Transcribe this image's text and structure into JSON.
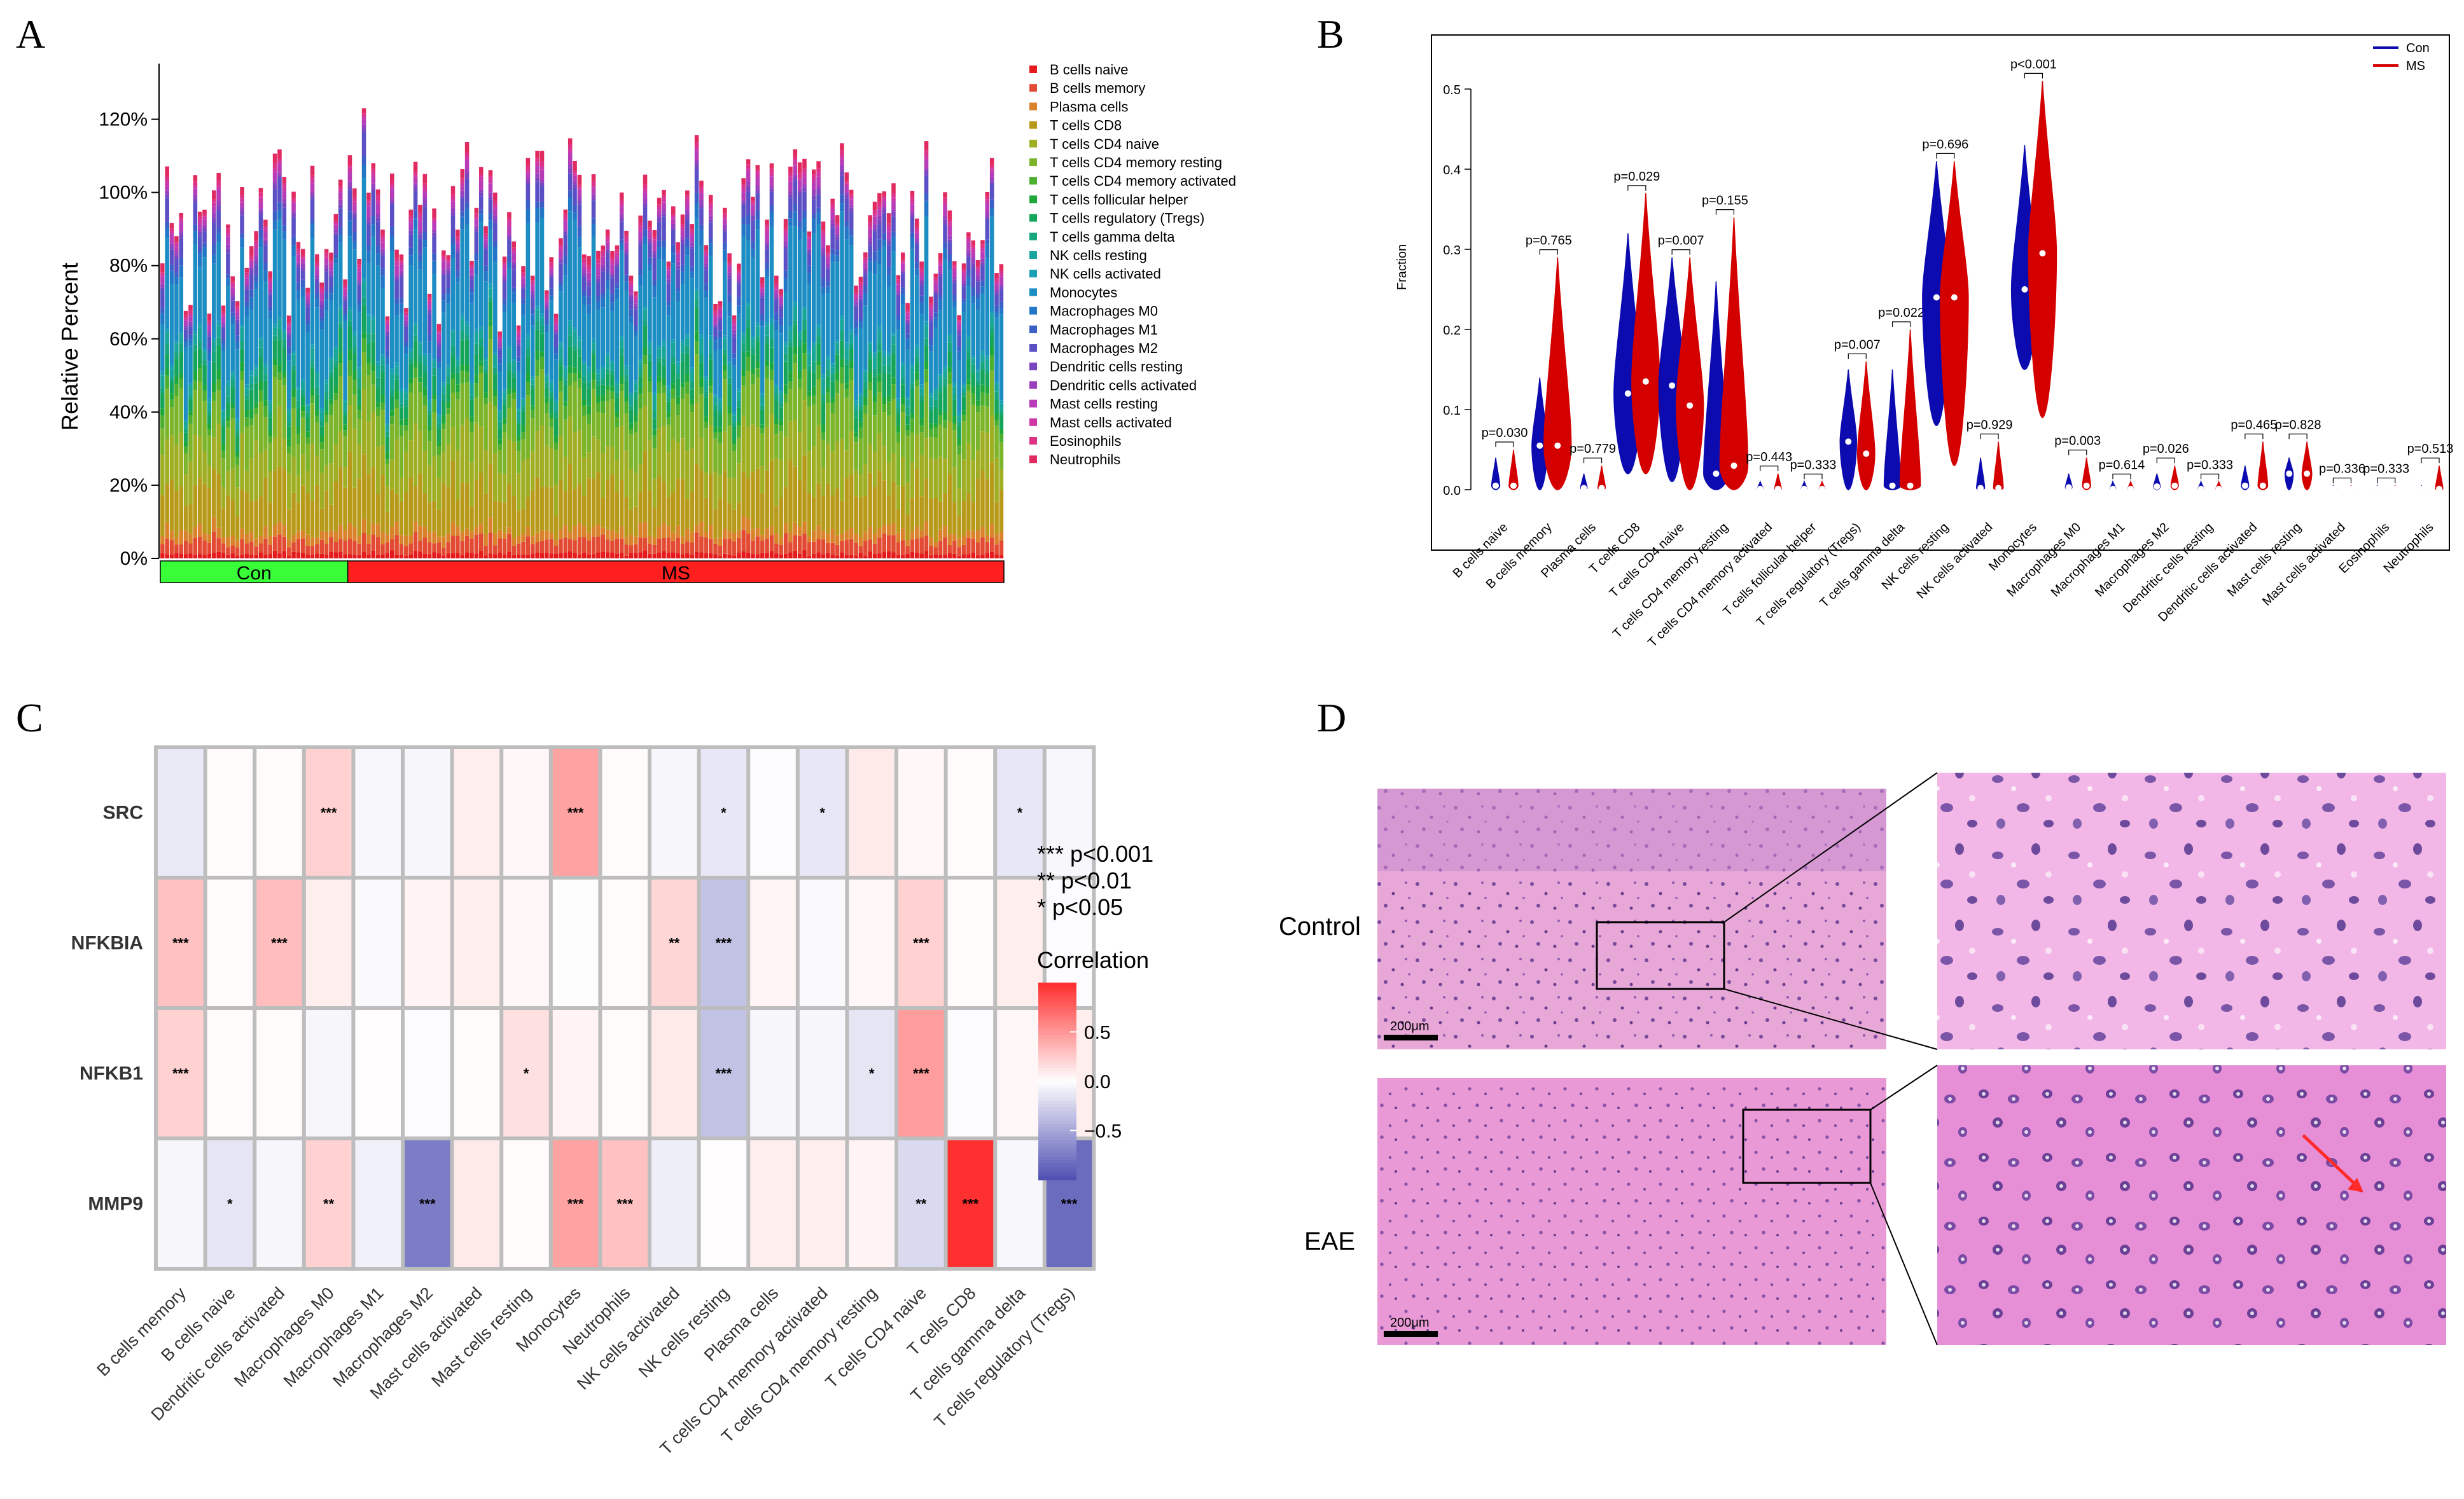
{
  "figure": {
    "panels": [
      "A",
      "B",
      "C",
      "D"
    ]
  },
  "chart_data": [
    {
      "panel": "A",
      "type": "bar",
      "stacked": true,
      "ylabel": "Relative Percent",
      "ylim": [
        0,
        130
      ],
      "y_ticks": [
        "0%",
        "20%",
        "40%",
        "60%",
        "80%",
        "100%",
        "120%"
      ],
      "y_tick_values": [
        0,
        20,
        40,
        60,
        80,
        100,
        120
      ],
      "groups": [
        {
          "name": "Con",
          "n_samples": 40,
          "color": "#39ff39"
        },
        {
          "name": "MS",
          "n_samples": 140,
          "color": "#ff1f1f"
        }
      ],
      "legend": [
        {
          "name": "B cells naive",
          "color": "#e41a1c"
        },
        {
          "name": "B cells memory",
          "color": "#e34a33"
        },
        {
          "name": "Plasma cells",
          "color": "#d9822b"
        },
        {
          "name": "T cells CD8",
          "color": "#b89a1a"
        },
        {
          "name": "T cells CD4 naive",
          "color": "#9fae22"
        },
        {
          "name": "T cells CD4 memory resting",
          "color": "#7cb42a"
        },
        {
          "name": "T cells CD4 memory activated",
          "color": "#4caf2e"
        },
        {
          "name": "T cells follicular helper",
          "color": "#1fa83a"
        },
        {
          "name": "T cells regulatory (Tregs)",
          "color": "#14a55a"
        },
        {
          "name": "T cells gamma delta",
          "color": "#17a57c"
        },
        {
          "name": "NK cells resting",
          "color": "#18a59a"
        },
        {
          "name": "NK cells activated",
          "color": "#1aa0b5"
        },
        {
          "name": "Monocytes",
          "color": "#1c8ec4"
        },
        {
          "name": "Macrophages M0",
          "color": "#2277c6"
        },
        {
          "name": "Macrophages M1",
          "color": "#3a5fc6"
        },
        {
          "name": "Macrophages M2",
          "color": "#5a4fc4"
        },
        {
          "name": "Dendritic cells resting",
          "color": "#7b45c0"
        },
        {
          "name": "Dendritic cells activated",
          "color": "#9a3fbd"
        },
        {
          "name": "Mast cells resting",
          "color": "#b83bb8"
        },
        {
          "name": "Mast cells activated",
          "color": "#cf37a5"
        },
        {
          "name": "Eosinophils",
          "color": "#dd3286"
        },
        {
          "name": "Neutrophils",
          "color": "#e12a5f"
        }
      ],
      "mean_composition_percent": [
        1.5,
        4,
        3,
        13,
        12,
        12,
        3,
        2,
        5,
        2,
        3,
        1,
        22,
        3,
        2,
        5,
        1,
        1,
        2,
        1,
        1,
        2
      ]
    },
    {
      "panel": "B",
      "type": "violin",
      "ylabel": "Fraction",
      "ylim": [
        0,
        0.55
      ],
      "y_ticks": [
        "0.0",
        "0.1",
        "0.2",
        "0.3",
        "0.4",
        "0.5"
      ],
      "y_tick_values": [
        0,
        0.1,
        0.2,
        0.3,
        0.4,
        0.5
      ],
      "legend": [
        {
          "name": "Con",
          "color": "#0b0bb0"
        },
        {
          "name": "MS",
          "color": "#d40000"
        }
      ],
      "categories": [
        "B cells naive",
        "B cells memory",
        "Plasma cells",
        "T cells CD8",
        "T cells CD4 naive",
        "T cells CD4 memory resting",
        "T cells CD4 memory activated",
        "T cells follicular helper",
        "T cells regulatory (Tregs)",
        "T cells gamma delta",
        "NK cells resting",
        "NK cells activated",
        "Monocytes",
        "Macrophages M0",
        "Macrophages M1",
        "Macrophages M2",
        "Dendritic cells resting",
        "Dendritic cells activated",
        "Mast cells resting",
        "Mast cells activated",
        "Eosinophils",
        "Neutrophils"
      ],
      "p_values": [
        "p=0.030",
        "p=0.765",
        "p=0.779",
        "p=0.029",
        "p=0.007",
        "p=0.155",
        "p=0.443",
        "p=0.333",
        "p=0.007",
        "p=0.022",
        "p=0.696",
        "p=0.929",
        "p<0.001",
        "p=0.003",
        "p=0.614",
        "p=0.026",
        "p=0.333",
        "p=0.465",
        "p=0.828",
        "p=0.336",
        "p=0.333",
        "p=0.513"
      ],
      "con": [
        {
          "min": 0,
          "max": 0.04,
          "median": 0.005
        },
        {
          "min": 0,
          "max": 0.14,
          "median": 0.055
        },
        {
          "min": 0,
          "max": 0.02,
          "median": 0.002
        },
        {
          "min": 0.02,
          "max": 0.32,
          "median": 0.12
        },
        {
          "min": 0.01,
          "max": 0.29,
          "median": 0.13
        },
        {
          "min": 0,
          "max": 0.26,
          "median": 0.02
        },
        {
          "min": 0,
          "max": 0.01,
          "median": 0.001
        },
        {
          "min": 0,
          "max": 0.01,
          "median": 0.001
        },
        {
          "min": 0,
          "max": 0.15,
          "median": 0.06
        },
        {
          "min": 0,
          "max": 0.15,
          "median": 0.005
        },
        {
          "min": 0.08,
          "max": 0.41,
          "median": 0.24
        },
        {
          "min": 0,
          "max": 0.04,
          "median": 0.002
        },
        {
          "min": 0.15,
          "max": 0.43,
          "median": 0.25
        },
        {
          "min": 0,
          "max": 0.02,
          "median": 0.003
        },
        {
          "min": 0,
          "max": 0.01,
          "median": 0.001
        },
        {
          "min": 0,
          "max": 0.02,
          "median": 0.004
        },
        {
          "min": 0,
          "max": 0.01,
          "median": 0.001
        },
        {
          "min": 0,
          "max": 0.03,
          "median": 0.005
        },
        {
          "min": 0,
          "max": 0.04,
          "median": 0.02
        },
        {
          "min": 0,
          "max": 0.005,
          "median": 0.001
        },
        {
          "min": 0,
          "max": 0.005,
          "median": 0.001
        },
        {
          "min": 0,
          "max": 0.005,
          "median": 0.001
        }
      ],
      "ms": [
        {
          "min": 0,
          "max": 0.05,
          "median": 0.005
        },
        {
          "min": 0,
          "max": 0.29,
          "median": 0.055
        },
        {
          "min": 0,
          "max": 0.03,
          "median": 0.002
        },
        {
          "min": 0.02,
          "max": 0.37,
          "median": 0.135
        },
        {
          "min": 0,
          "max": 0.29,
          "median": 0.105
        },
        {
          "min": 0,
          "max": 0.34,
          "median": 0.03
        },
        {
          "min": 0,
          "max": 0.02,
          "median": 0.001
        },
        {
          "min": 0,
          "max": 0.01,
          "median": 0.001
        },
        {
          "min": 0,
          "max": 0.16,
          "median": 0.045
        },
        {
          "min": 0,
          "max": 0.2,
          "median": 0.005
        },
        {
          "min": 0.03,
          "max": 0.41,
          "median": 0.24
        },
        {
          "min": 0,
          "max": 0.06,
          "median": 0.002
        },
        {
          "min": 0.09,
          "max": 0.51,
          "median": 0.295
        },
        {
          "min": 0,
          "max": 0.04,
          "median": 0.005
        },
        {
          "min": 0,
          "max": 0.01,
          "median": 0.001
        },
        {
          "min": 0,
          "max": 0.03,
          "median": 0.005
        },
        {
          "min": 0,
          "max": 0.01,
          "median": 0.001
        },
        {
          "min": 0,
          "max": 0.06,
          "median": 0.005
        },
        {
          "min": 0,
          "max": 0.06,
          "median": 0.02
        },
        {
          "min": 0,
          "max": 0.005,
          "median": 0.001
        },
        {
          "min": 0,
          "max": 0.005,
          "median": 0.001
        },
        {
          "min": 0,
          "max": 0.03,
          "median": 0.001
        }
      ]
    },
    {
      "panel": "C",
      "type": "heatmap",
      "rows": [
        "SRC",
        "NFKBIA",
        "NFKB1",
        "MMP9"
      ],
      "columns": [
        "B cells memory",
        "B cells naive",
        "Dendritic cells activated",
        "Macrophages M0",
        "Macrophages M1",
        "Macrophages M2",
        "Mast cells activated",
        "Mast cells resting",
        "Monocytes",
        "Neutrophils",
        "NK cells activated",
        "NK cells resting",
        "Plasma cells",
        "T cells CD4 memory activated",
        "T cells CD4 memory resting",
        "T cells CD4 naive",
        "T cells CD8",
        "T cells gamma delta",
        "T cells regulatory (Tregs)"
      ],
      "values": [
        [
          -0.12,
          0.02,
          0.02,
          0.22,
          -0.04,
          -0.05,
          0.08,
          0.04,
          0.45,
          0.02,
          -0.05,
          -0.14,
          -0.02,
          -0.14,
          0.1,
          0.04,
          0.02,
          -0.14,
          -0.04
        ],
        [
          0.3,
          0.02,
          0.32,
          0.08,
          -0.03,
          0.06,
          0.08,
          0.04,
          -0.01,
          0.02,
          0.2,
          -0.35,
          0.05,
          -0.03,
          0.04,
          0.22,
          0.02,
          0.08,
          -0.02
        ],
        [
          0.22,
          0.02,
          0.02,
          -0.05,
          0.01,
          -0.02,
          0.02,
          0.15,
          0.06,
          0.02,
          0.1,
          -0.35,
          -0.05,
          -0.05,
          -0.15,
          0.48,
          -0.02,
          0.04,
          0.08
        ],
        [
          -0.05,
          -0.15,
          -0.05,
          0.22,
          -0.08,
          -0.75,
          0.1,
          0.02,
          0.45,
          0.3,
          -0.1,
          0.01,
          0.08,
          0.08,
          0.06,
          -0.22,
          1.0,
          -0.04,
          -0.85
        ]
      ],
      "stars": [
        [
          "",
          "",
          "",
          "***",
          "",
          "",
          "",
          "",
          "***",
          "",
          "",
          "*",
          "",
          "*",
          "",
          "",
          "",
          "*",
          ""
        ],
        [
          "***",
          "",
          "***",
          "",
          "",
          "",
          "",
          "",
          "",
          "",
          "**",
          "***",
          "",
          "",
          "",
          "***",
          "",
          "",
          ""
        ],
        [
          "***",
          "",
          "",
          "",
          "",
          "",
          "",
          "*",
          "",
          "",
          "",
          "***",
          "",
          "",
          "*",
          "***",
          "",
          "",
          ""
        ],
        [
          "",
          "*",
          "",
          "**",
          "",
          "***",
          "",
          "",
          "***",
          "***",
          "",
          "",
          "",
          "",
          "",
          "**",
          "***",
          "",
          "***"
        ]
      ],
      "significance_legend": [
        "***  p<0.001",
        "**  p<0.01",
        "*  p<0.05"
      ],
      "colorbar_title": "Correlation",
      "colorbar_ticks": [
        "0.5",
        "0.0",
        "−0.5"
      ],
      "colorbar_tick_values": [
        0.5,
        0.0,
        -0.5
      ],
      "color_low": "#5252b4",
      "color_mid": "#ffffff",
      "color_high": "#ff3030",
      "range": [
        -1,
        1
      ]
    }
  ],
  "panel_d": {
    "row_labels": [
      "Control",
      "EAE"
    ],
    "scale_bar_label": "200μm"
  }
}
